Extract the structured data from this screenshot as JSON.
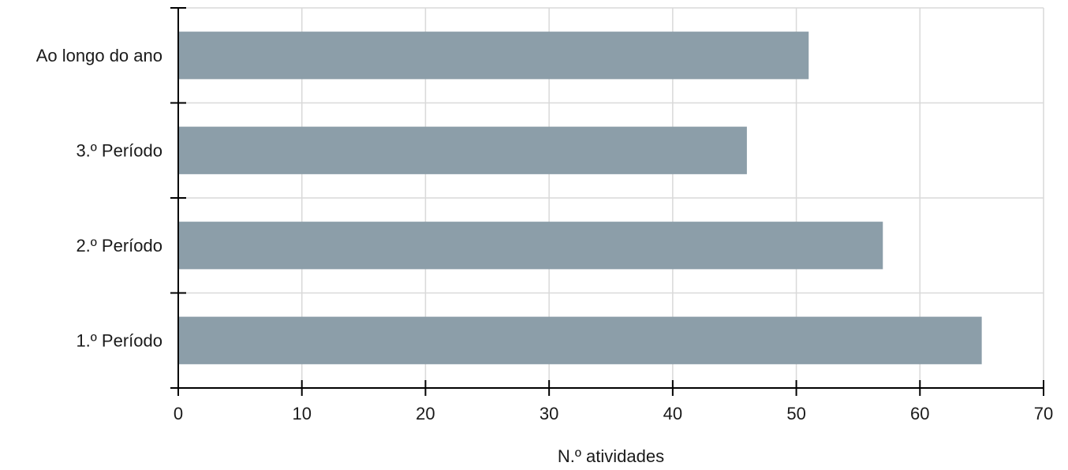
{
  "chart_data": {
    "type": "bar",
    "orientation": "horizontal",
    "categories": [
      "1.º Período",
      "2.º Período",
      "3.º Período",
      "Ao longo do ano"
    ],
    "values": [
      65,
      57,
      46,
      51
    ],
    "xlabel": "N.º atividades",
    "ylabel": "",
    "xlim": [
      0,
      70
    ],
    "xticks": [
      0,
      10,
      20,
      30,
      40,
      50,
      60,
      70
    ],
    "grid": true,
    "bar_color": "#8c9ea9"
  }
}
